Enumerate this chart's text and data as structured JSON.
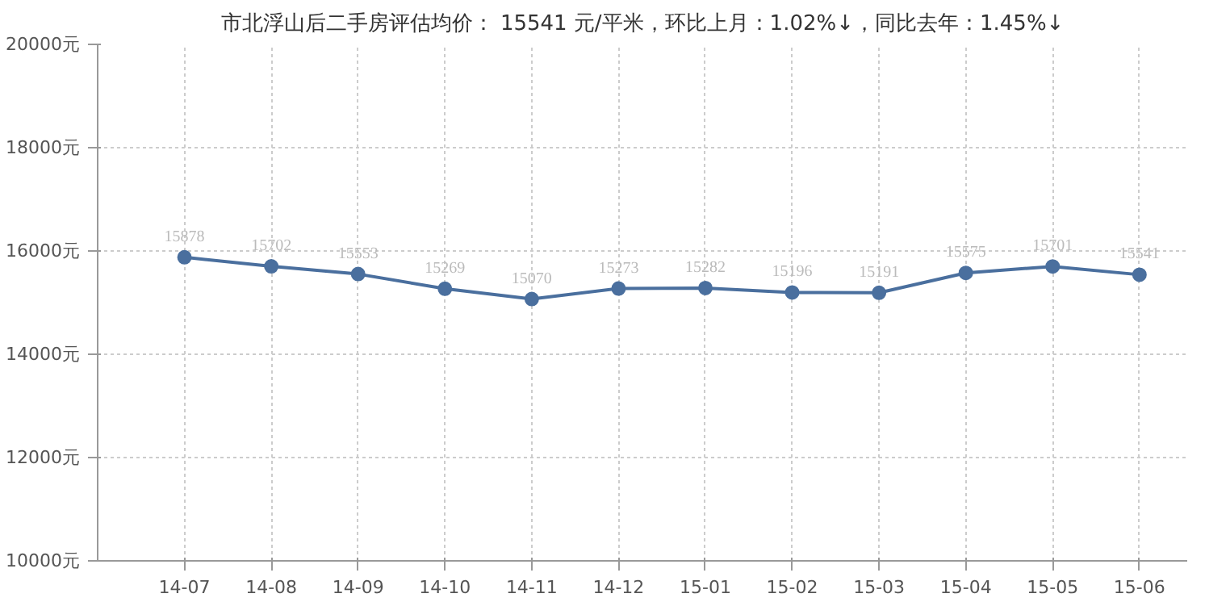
{
  "chart_data": {
    "type": "line",
    "title": "市北浮山后二手房评估均价： 15541 元/平米，环比上月：1.02%↓，同比去年：1.45%↓",
    "categories": [
      "14-07",
      "14-08",
      "14-09",
      "14-10",
      "14-11",
      "14-12",
      "15-01",
      "15-02",
      "15-03",
      "15-04",
      "15-05",
      "15-06"
    ],
    "series": [
      {
        "color": "#4a6f9e",
        "values": [
          15878,
          15702,
          15553,
          15269,
          15070,
          15273,
          15282,
          15196,
          15191,
          15575,
          15701,
          15541
        ]
      }
    ],
    "ylim": [
      10000,
      20000
    ],
    "yticks": [
      {
        "value": 10000,
        "label": "10000元"
      },
      {
        "value": 12000,
        "label": "12000元"
      },
      {
        "value": 14000,
        "label": "14000元"
      },
      {
        "value": 16000,
        "label": "16000元"
      },
      {
        "value": 18000,
        "label": "18000元"
      },
      {
        "value": 20000,
        "label": "20000元"
      }
    ],
    "grid": true,
    "marker": "circle",
    "data_labels": true
  }
}
